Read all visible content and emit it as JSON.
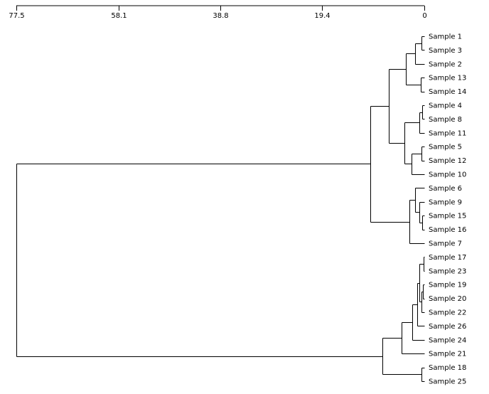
{
  "colors": {
    "line": "#000000",
    "background": "#ffffff"
  },
  "axis": {
    "min": 0,
    "max": 77.5,
    "tick_labels": [
      "77.5",
      "58.1",
      "38.8",
      "19.4",
      "0"
    ],
    "tick_values": [
      77.5,
      58.1,
      38.8,
      19.4,
      0
    ]
  },
  "leaves": [
    "Sample 1",
    "Sample 3",
    "Sample 2",
    "Sample 13",
    "Sample 14",
    "Sample 4",
    "Sample 8",
    "Sample 11",
    "Sample 5",
    "Sample 12",
    "Sample 10",
    "Sample 6",
    "Sample 9",
    "Sample 15",
    "Sample 16",
    "Sample 7",
    "Sample 17",
    "Sample 23",
    "Sample 19",
    "Sample 20",
    "Sample 22",
    "Sample 26",
    "Sample 24",
    "Sample 21",
    "Sample 18",
    "Sample 25"
  ],
  "merges": [
    {
      "id": "a",
      "children": [
        "Sample 1",
        "Sample 3"
      ],
      "height": 0.6
    },
    {
      "id": "b",
      "children": [
        "a",
        "Sample 2"
      ],
      "height": 1.7
    },
    {
      "id": "c",
      "children": [
        "Sample 13",
        "Sample 14"
      ],
      "height": 0.7
    },
    {
      "id": "d",
      "children": [
        "b",
        "c"
      ],
      "height": 3.5
    },
    {
      "id": "e",
      "children": [
        "Sample 4",
        "Sample 8"
      ],
      "height": 0.4
    },
    {
      "id": "f",
      "children": [
        "e",
        "Sample 11"
      ],
      "height": 0.9
    },
    {
      "id": "g",
      "children": [
        "Sample 5",
        "Sample 12"
      ],
      "height": 0.6
    },
    {
      "id": "h",
      "children": [
        "g",
        "Sample 10"
      ],
      "height": 2.4
    },
    {
      "id": "i",
      "children": [
        "f",
        "h"
      ],
      "height": 3.8
    },
    {
      "id": "j",
      "children": [
        "d",
        "i"
      ],
      "height": 6.7
    },
    {
      "id": "k",
      "children": [
        "Sample 15",
        "Sample 16"
      ],
      "height": 0.4
    },
    {
      "id": "l",
      "children": [
        "Sample 9",
        "k"
      ],
      "height": 1.0
    },
    {
      "id": "m",
      "children": [
        "Sample 6",
        "l"
      ],
      "height": 1.7
    },
    {
      "id": "n",
      "children": [
        "m",
        "Sample 7"
      ],
      "height": 2.9
    },
    {
      "id": "o",
      "children": [
        "j",
        "n"
      ],
      "height": 10.2
    },
    {
      "id": "p",
      "children": [
        "Sample 17",
        "Sample 23"
      ],
      "height": 0.2
    },
    {
      "id": "q",
      "children": [
        "Sample 19",
        "Sample 20"
      ],
      "height": 0.3
    },
    {
      "id": "r",
      "children": [
        "q",
        "Sample 22"
      ],
      "height": 0.6
    },
    {
      "id": "s",
      "children": [
        "p",
        "r"
      ],
      "height": 1.0
    },
    {
      "id": "t",
      "children": [
        "s",
        "Sample 26"
      ],
      "height": 1.3
    },
    {
      "id": "u",
      "children": [
        "t",
        "Sample 24"
      ],
      "height": 2.3
    },
    {
      "id": "v",
      "children": [
        "u",
        "Sample 21"
      ],
      "height": 4.3
    },
    {
      "id": "w",
      "children": [
        "Sample 18",
        "Sample 25"
      ],
      "height": 0.6
    },
    {
      "id": "x",
      "children": [
        "v",
        "w"
      ],
      "height": 8.0
    },
    {
      "id": "y",
      "children": [
        "o",
        "x"
      ],
      "height": 77.5
    }
  ]
}
